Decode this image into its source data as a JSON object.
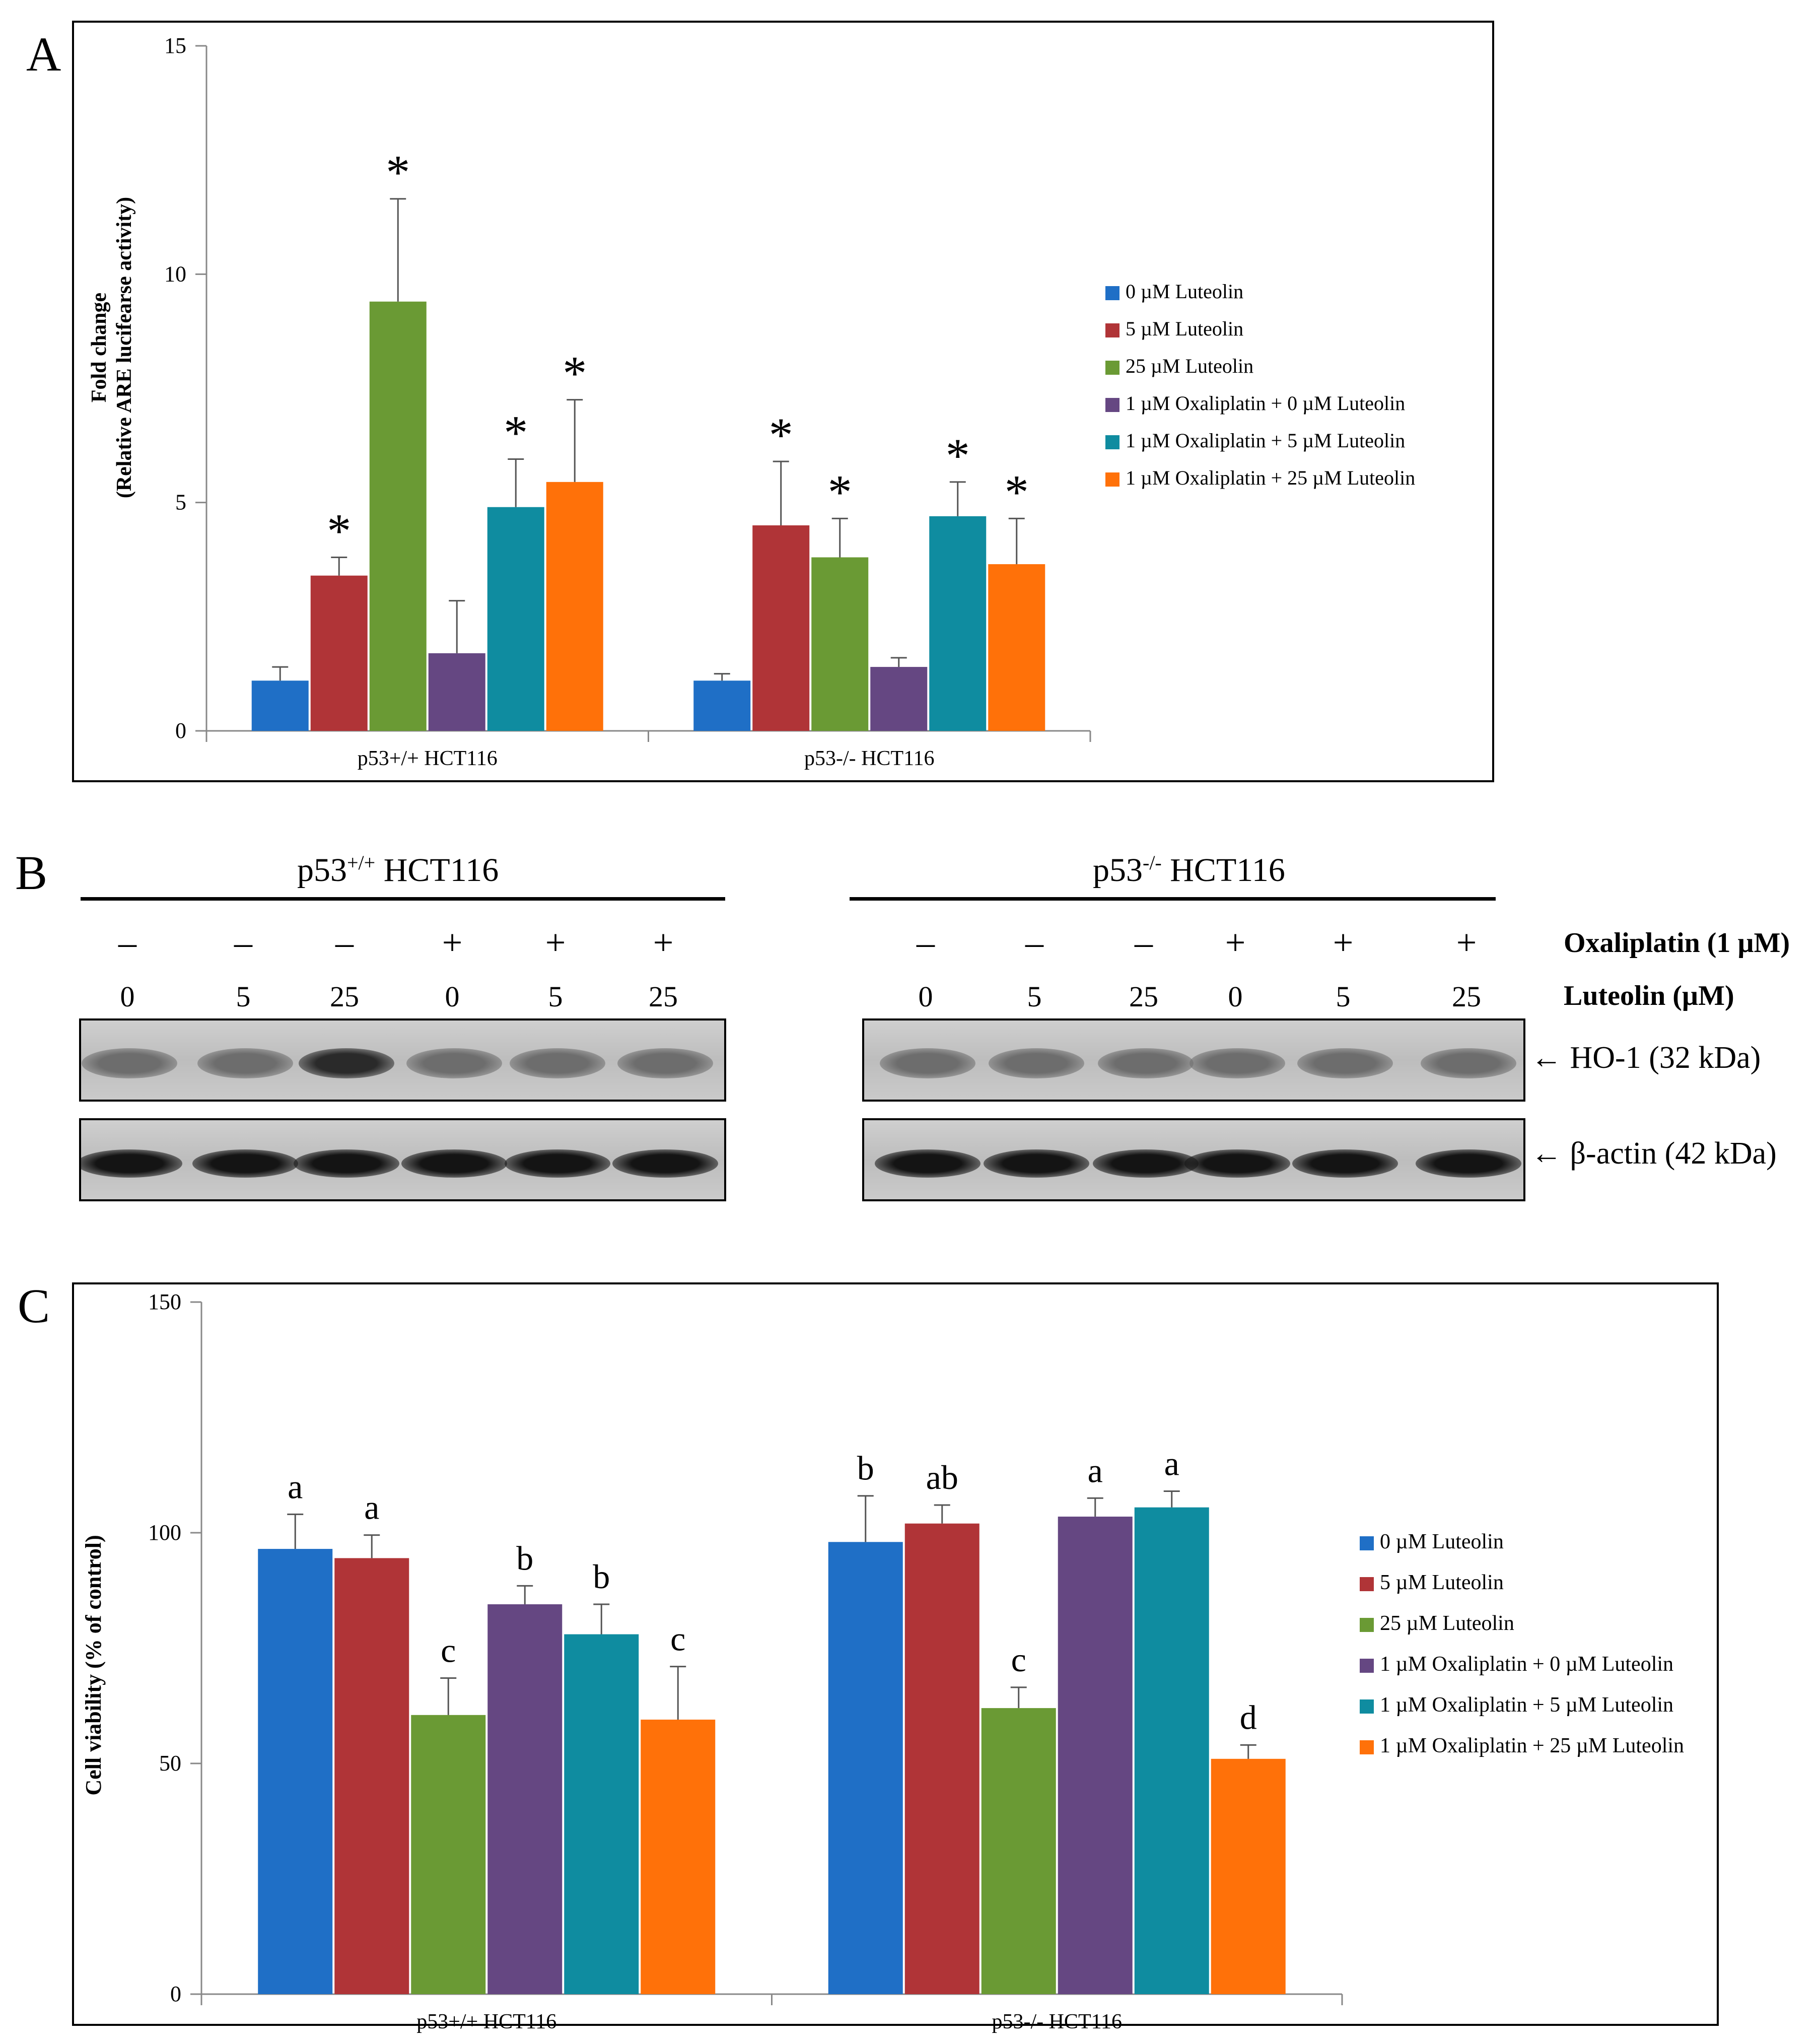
{
  "panels": {
    "a": "A",
    "b": "B",
    "c": "C"
  },
  "chart_data": [
    {
      "type": "bar",
      "panel": "A",
      "ylabel_line1": "Fold change",
      "ylabel_line2": "(Relative ARE lucifearse activity)",
      "categories": [
        "p53+/+ HCT116",
        "p53-/- HCT116"
      ],
      "ylim": [
        0,
        15
      ],
      "yticks": [
        0,
        5,
        10,
        15
      ],
      "legend_position": "right",
      "series": [
        {
          "name": "0 µM Luteolin",
          "color": "#1f6fc6",
          "values": [
            1.1,
            1.1
          ],
          "errors": [
            0.3,
            0.15
          ],
          "labels": [
            "",
            ""
          ]
        },
        {
          "name": "5 µM Luteolin",
          "color": "#b03437",
          "values": [
            3.4,
            4.5
          ],
          "errors": [
            0.4,
            1.4
          ],
          "labels": [
            "*",
            "*"
          ]
        },
        {
          "name": "25 µM Luteolin",
          "color": "#6a9a34",
          "values": [
            9.4,
            3.8
          ],
          "errors": [
            2.25,
            0.85
          ],
          "labels": [
            "*",
            "*"
          ]
        },
        {
          "name": "1 µM Oxaliplatin + 0 µM Luteolin",
          "color": "#654782",
          "values": [
            1.7,
            1.4
          ],
          "errors": [
            1.15,
            0.2
          ],
          "labels": [
            "",
            ""
          ]
        },
        {
          "name": "1 µM Oxaliplatin + 5 µM Luteolin",
          "color": "#0f8ca0",
          "values": [
            4.9,
            4.7
          ],
          "errors": [
            1.05,
            0.75
          ],
          "labels": [
            "*",
            "*"
          ]
        },
        {
          "name": "1 µM Oxaliplatin + 25 µM Luteolin",
          "color": "#ff7109",
          "values": [
            5.45,
            3.65
          ],
          "errors": [
            1.8,
            1.0
          ],
          "labels": [
            "*",
            "*"
          ]
        }
      ]
    },
    {
      "type": "bar",
      "panel": "C",
      "ylabel": "Cell viability (% of control)",
      "categories": [
        "p53+/+ HCT116",
        "p53-/- HCT116"
      ],
      "ylim": [
        0,
        150
      ],
      "yticks": [
        0,
        50,
        100,
        150
      ],
      "legend_position": "right",
      "series": [
        {
          "name": "0 µM Luteolin",
          "color": "#1f6fc6",
          "values": [
            96.5,
            98
          ],
          "errors": [
            7.5,
            10
          ],
          "labels": [
            "a",
            "b"
          ]
        },
        {
          "name": "5 µM Luteolin",
          "color": "#b03437",
          "values": [
            94.5,
            102
          ],
          "errors": [
            5,
            4
          ],
          "labels": [
            "a",
            "ab"
          ]
        },
        {
          "name": "25 µM Luteolin",
          "color": "#6a9a34",
          "values": [
            60.5,
            62
          ],
          "errors": [
            8,
            4.5
          ],
          "labels": [
            "c",
            "c"
          ]
        },
        {
          "name": "1 µM Oxaliplatin + 0 µM Luteolin",
          "color": "#654782",
          "values": [
            84.5,
            103.5
          ],
          "errors": [
            4,
            4
          ],
          "labels": [
            "b",
            "a"
          ]
        },
        {
          "name": "1 µM Oxaliplatin + 5 µM Luteolin",
          "color": "#0f8ca0",
          "values": [
            78,
            105.5
          ],
          "errors": [
            6.5,
            3.5
          ],
          "labels": [
            "b",
            "a"
          ]
        },
        {
          "name": "1 µM Oxaliplatin + 25 µM Luteolin",
          "color": "#ff7109",
          "values": [
            59.5,
            51
          ],
          "errors": [
            11.5,
            3
          ],
          "labels": [
            "c",
            "d"
          ]
        }
      ]
    }
  ],
  "blot": {
    "groups": [
      {
        "title_main": "p53",
        "title_sup": "+/+",
        "title_rest": " HCT116",
        "oxaliplatin": [
          "–",
          "–",
          "–",
          "+",
          "+",
          "+"
        ],
        "luteolin": [
          "0",
          "5",
          "25",
          "0",
          "5",
          "25"
        ]
      },
      {
        "title_main": "p53",
        "title_sup": "-/-",
        "title_rest": " HCT116",
        "oxaliplatin": [
          "–",
          "–",
          "–",
          "+",
          "+",
          "+"
        ],
        "luteolin": [
          "0",
          "5",
          "25",
          "0",
          "5",
          "25"
        ]
      }
    ],
    "row_labels": {
      "oxaliplatin": "Oxaliplatin  (1 µM)",
      "luteolin": "Luteolin (µM)"
    },
    "bands": [
      "HO-1  (32 kDa)",
      "β-actin (42 kDa)"
    ],
    "arrow": "←"
  }
}
